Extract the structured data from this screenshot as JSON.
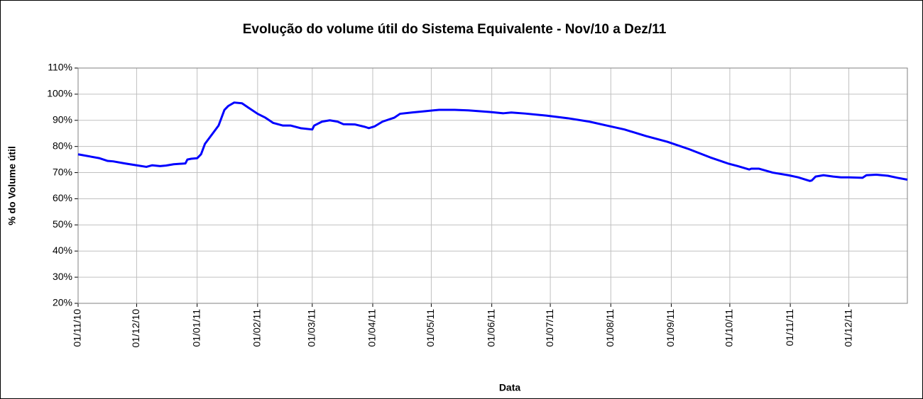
{
  "chart_data": {
    "type": "line",
    "title": "Evolução do volume útil do Sistema Equivalente - Nov/10 a Dez/11",
    "y_label": "% do Volume útil",
    "x_label": "Data",
    "color": "#0000ff",
    "grid": true,
    "x": [
      "01/11/10",
      "12/11/10",
      "16/11/10",
      "19/11/10",
      "25/11/10",
      "01/12/10",
      "06/12/10",
      "09/12/10",
      "13/12/10",
      "16/12/10",
      "20/12/10",
      "26/12/10",
      "27/12/10",
      "29/12/10",
      "01/01/11",
      "03/01/11",
      "05/01/11",
      "09/01/11",
      "12/01/11",
      "15/01/11",
      "17/01/11",
      "20/01/11",
      "24/01/11",
      "27/01/11",
      "01/02/11",
      "05/02/11",
      "09/02/11",
      "14/02/11",
      "18/02/11",
      "23/02/11",
      "01/03/11",
      "02/03/11",
      "06/03/11",
      "10/03/11",
      "14/03/11",
      "17/03/11",
      "23/03/11",
      "28/03/11",
      "30/03/11",
      "02/04/11",
      "06/04/11",
      "12/04/11",
      "15/04/11",
      "21/04/11",
      "28/04/11",
      "02/05/11",
      "05/05/11",
      "13/05/11",
      "20/05/11",
      "31/05/11",
      "07/06/11",
      "11/06/11",
      "18/06/11",
      "29/06/11",
      "10/07/11",
      "21/07/11",
      "30/07/11",
      "08/08/11",
      "19/08/11",
      "30/08/11",
      "10/09/11",
      "21/09/11",
      "30/09/11",
      "05/10/11",
      "11/10/11",
      "12/10/11",
      "16/10/11",
      "23/10/11",
      "31/10/11",
      "05/11/11",
      "11/11/11",
      "12/11/11",
      "14/11/11",
      "18/11/11",
      "23/11/11",
      "27/11/11",
      "01/12/11",
      "08/12/11",
      "10/12/11",
      "15/12/11",
      "21/12/11",
      "26/12/11",
      "31/12/11"
    ],
    "values": [
      77,
      75.5,
      74.5,
      74.3,
      73.5,
      72.8,
      72.2,
      72.8,
      72.5,
      72.7,
      73.2,
      73.5,
      75,
      75.3,
      75.5,
      77,
      81,
      85,
      88,
      94,
      95.5,
      96.8,
      96.5,
      95,
      92.5,
      91,
      89,
      88,
      88,
      87,
      86.5,
      88,
      89.5,
      90,
      89.5,
      88.5,
      88.4,
      87.5,
      87,
      87.7,
      89.5,
      91,
      92.5,
      93,
      93.5,
      93.8,
      94,
      94,
      93.8,
      93.2,
      92.7,
      93,
      92.6,
      91.8,
      90.8,
      89.5,
      88,
      86.5,
      84,
      81.8,
      79,
      75.8,
      73.5,
      72.5,
      71.2,
      71.5,
      71.5,
      70,
      69,
      68.2,
      66.8,
      67,
      68.5,
      69,
      68.5,
      68.2,
      68.2,
      68,
      69,
      69.2,
      68.8,
      68,
      67.3
    ],
    "xlim": [
      "01/11/10",
      "31/12/11"
    ],
    "xticks": [
      "01/11/10",
      "01/12/10",
      "01/01/11",
      "01/02/11",
      "01/03/11",
      "01/04/11",
      "01/05/11",
      "01/06/11",
      "01/07/11",
      "01/08/11",
      "01/09/11",
      "01/10/11",
      "01/11/11",
      "01/12/11"
    ],
    "ylim": [
      20,
      110
    ],
    "yticks": [
      {
        "value": 20,
        "label": "20%"
      },
      {
        "value": 30,
        "label": "30%"
      },
      {
        "value": 40,
        "label": "40%"
      },
      {
        "value": 50,
        "label": "50%"
      },
      {
        "value": 60,
        "label": "60%"
      },
      {
        "value": 70,
        "label": "70%"
      },
      {
        "value": 80,
        "label": "80%"
      },
      {
        "value": 90,
        "label": "90%"
      },
      {
        "value": 100,
        "label": "100%"
      },
      {
        "value": 110,
        "label": "110%"
      }
    ]
  }
}
